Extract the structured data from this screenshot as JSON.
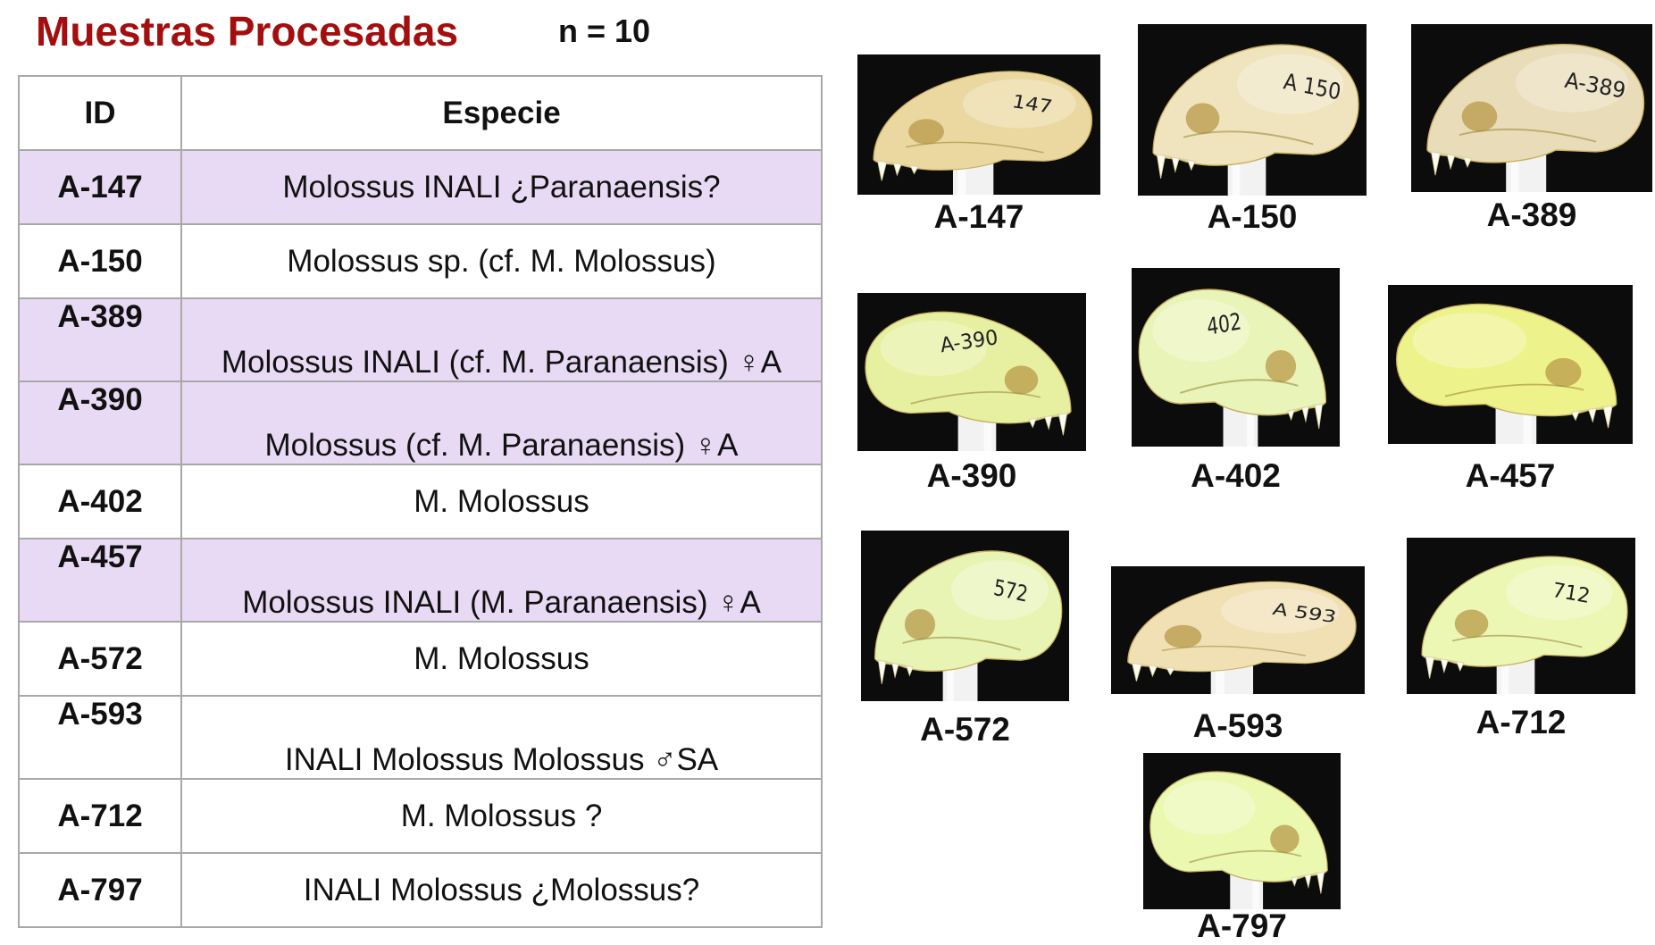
{
  "header": {
    "title": "Muestras Procesadas",
    "count": "n = 10"
  },
  "table": {
    "columns": [
      "ID",
      "Especie"
    ],
    "rows": [
      {
        "id": "A-147",
        "species": "Molossus INALI ¿Paranaensis?"
      },
      {
        "id": "A-150",
        "species": "Molossus sp. (cf. M. Molossus)"
      },
      {
        "id": "A-389",
        "species": "Molossus INALI (cf. M. Paranaensis)  ♀A"
      },
      {
        "id": "A-390",
        "species": "Molossus (cf. M. Paranaensis)  ♀A"
      },
      {
        "id": "A-402",
        "species": "M. Molossus"
      },
      {
        "id": "A-457",
        "species": "Molossus INALI (M. Paranaensis)  ♀A"
      },
      {
        "id": "A-572",
        "species": "M. Molossus"
      },
      {
        "id": "A-593",
        "species": "INALI Molossus Molossus  ♂SA"
      },
      {
        "id": "A-712",
        "species": "M. Molossus ?"
      },
      {
        "id": "A-797",
        "species": "INALI Molossus ¿Molossus?"
      }
    ],
    "highlight_color": "#e8daf4"
  },
  "photos": [
    {
      "label": "A-147",
      "skull_color": "#ead8a0",
      "specimen_mark": "147"
    },
    {
      "label": "A-150",
      "skull_color": "#efe4bd",
      "specimen_mark": "A 150"
    },
    {
      "label": "A-389",
      "skull_color": "#e9dcb8",
      "specimen_mark": "A-389"
    },
    {
      "label": "A-390",
      "skull_color": "#e7f0a0",
      "specimen_mark": "A-390"
    },
    {
      "label": "A-402",
      "skull_color": "#e9f4b8",
      "specimen_mark": "402"
    },
    {
      "label": "A-457",
      "skull_color": "#eef28a",
      "specimen_mark": ""
    },
    {
      "label": "A-572",
      "skull_color": "#e8f4b4",
      "specimen_mark": "572"
    },
    {
      "label": "A-593",
      "skull_color": "#f0e0b4",
      "specimen_mark": "A 593"
    },
    {
      "label": "A-712",
      "skull_color": "#ecf7b4",
      "specimen_mark": "712"
    },
    {
      "label": "A-797",
      "skull_color": "#eaf8b0",
      "specimen_mark": ""
    }
  ],
  "colors": {
    "title": "#a30f0f",
    "photo_background": "#0c0c0c",
    "mount": "#f2f2f2"
  }
}
